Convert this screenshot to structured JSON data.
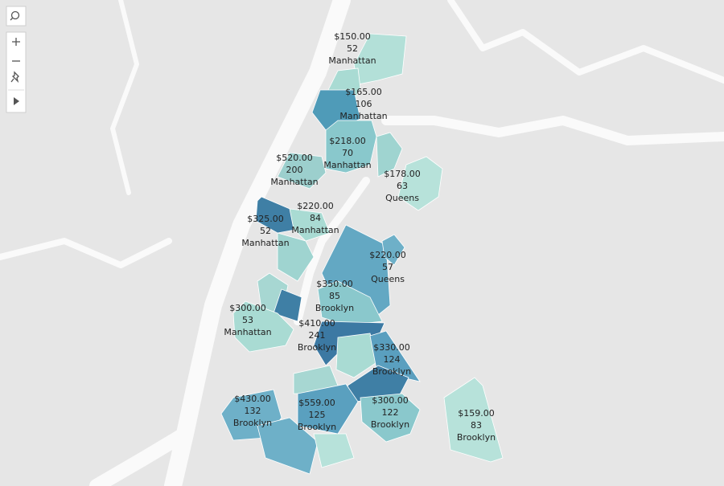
{
  "regions": [
    {
      "price": "$150.00",
      "count": 52,
      "borough": "Manhattan"
    },
    {
      "price": "$165.00",
      "count": 106,
      "borough": "Manhattan"
    },
    {
      "price": "$218.00",
      "count": 70,
      "borough": "Manhattan"
    },
    {
      "price": "$520.00",
      "count": 200,
      "borough": "Manhattan"
    },
    {
      "price": "$178.00",
      "count": 63,
      "borough": "Queens"
    },
    {
      "price": "$220.00",
      "count": 84,
      "borough": "Manhattan"
    },
    {
      "price": "$325.00",
      "count": 52,
      "borough": "Manhattan"
    },
    {
      "price": "$220.00",
      "count": 57,
      "borough": "Queens"
    },
    {
      "price": "$350.00",
      "count": 85,
      "borough": "Brooklyn"
    },
    {
      "price": "$300.00",
      "count": 53,
      "borough": "Manhattan"
    },
    {
      "price": "$410.00",
      "count": 241,
      "borough": "Brooklyn"
    },
    {
      "price": "$330.00",
      "count": 124,
      "borough": "Brooklyn"
    },
    {
      "price": "$430.00",
      "count": 132,
      "borough": "Brooklyn"
    },
    {
      "price": "$559.00",
      "count": 125,
      "borough": "Brooklyn"
    },
    {
      "price": "$300.00",
      "count": 122,
      "borough": "Brooklyn"
    },
    {
      "price": "$159.00",
      "count": 83,
      "borough": "Brooklyn"
    }
  ]
}
